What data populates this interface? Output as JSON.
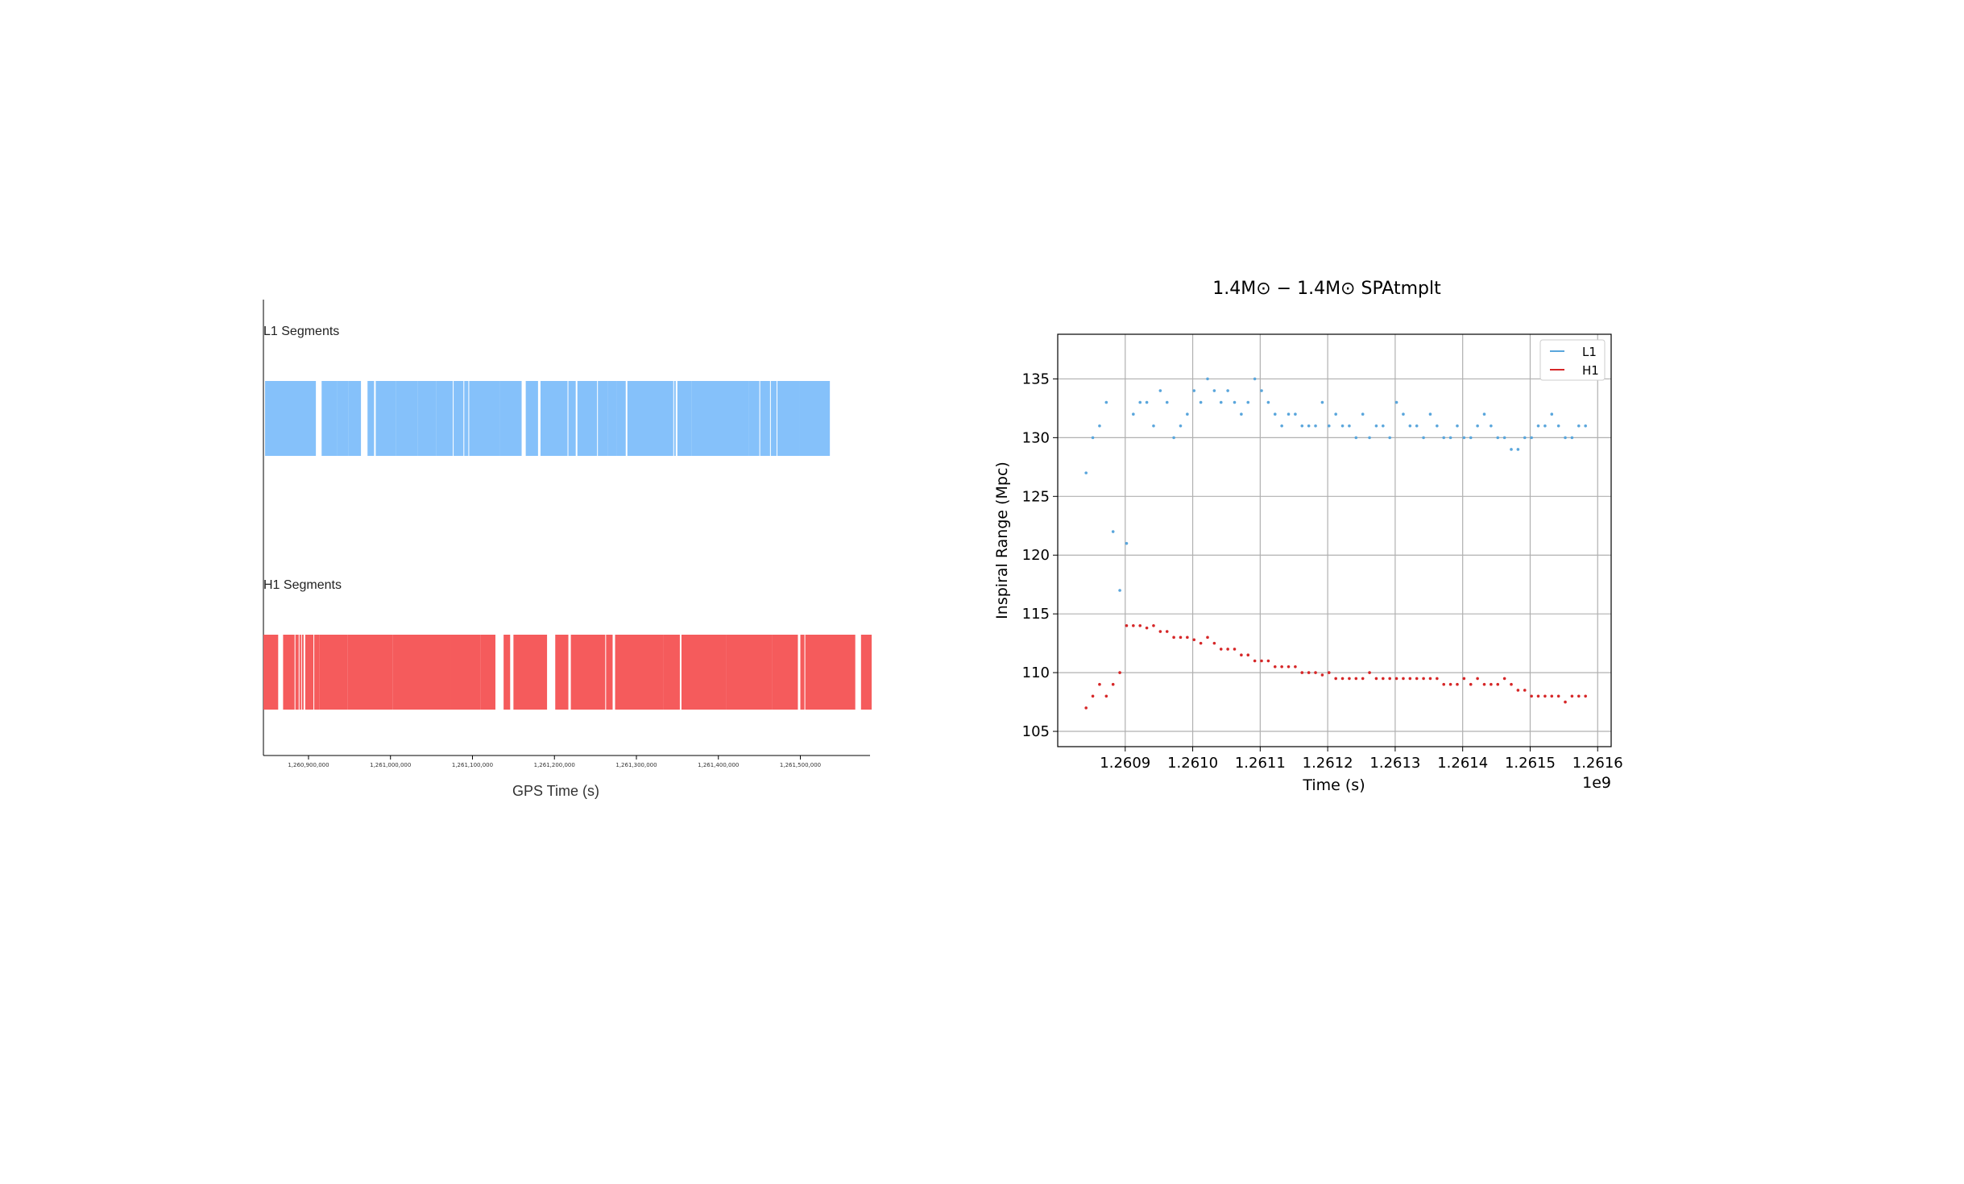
{
  "segments_chart": {
    "xlabel": "GPS Time (s)",
    "tick_labels": [
      "1,260,900,000",
      "1,261,000,000",
      "1,261,100,000",
      "1,261,200,000",
      "1,261,300,000",
      "1,261,400,000",
      "1,261,500,000"
    ]
  },
  "range_chart": {
    "title": "1.4M⊙ − 1.4M⊙ SPAtmplt",
    "xlabel": "Time (s)",
    "ylabel": "Inspiral Range (Mpc)",
    "x_offset_label": "1e9",
    "x_tick_labels": [
      "1.2609",
      "1.2610",
      "1.2611",
      "1.2612",
      "1.2613",
      "1.2614",
      "1.2615",
      "1.2616"
    ],
    "y_tick_labels": [
      "105",
      "110",
      "115",
      "120",
      "125",
      "130",
      "135"
    ]
  },
  "chart_data": [
    {
      "type": "bar",
      "xlabel": "GPS Time (s)",
      "xlim": [
        1260845000,
        1261585000
      ],
      "series": [
        {
          "name": "L1 Segments",
          "color": "#85c1fa",
          "segments": [
            [
              1260847000,
              1260909000
            ],
            [
              1260916000,
              1260935000
            ],
            [
              1260935000,
              1260949000
            ],
            [
              1260949000,
              1260964000
            ],
            [
              1260972000,
              1260980000
            ],
            [
              1260982000,
              1261007000
            ],
            [
              1261007000,
              1261033000
            ],
            [
              1261033000,
              1261056000
            ],
            [
              1261056000,
              1261076000
            ],
            [
              1261077000,
              1261089000
            ],
            [
              1261090000,
              1261095000
            ],
            [
              1261096000,
              1261133000
            ],
            [
              1261133000,
              1261160000
            ],
            [
              1261165000,
              1261180000
            ],
            [
              1261183000,
              1261216000
            ],
            [
              1261217000,
              1261226000
            ],
            [
              1261228000,
              1261252000
            ],
            [
              1261253000,
              1261265000
            ],
            [
              1261265000,
              1261276000
            ],
            [
              1261276000,
              1261287000
            ],
            [
              1261289000,
              1261345000
            ],
            [
              1261346000,
              1261348000
            ],
            [
              1261350000,
              1261367000
            ],
            [
              1261367000,
              1261437000
            ],
            [
              1261437000,
              1261450000
            ],
            [
              1261451000,
              1261463000
            ],
            [
              1261464000,
              1261471000
            ],
            [
              1261472000,
              1261499000
            ],
            [
              1261499000,
              1261536000
            ]
          ]
        },
        {
          "name": "H1 Segments",
          "color": "#f55b5c",
          "segments": [
            [
              1260845000,
              1260863000
            ],
            [
              1260869000,
              1260883000
            ],
            [
              1260884000,
              1260888000
            ],
            [
              1260889000,
              1260891000
            ],
            [
              1260892000,
              1260894000
            ],
            [
              1260896000,
              1260906000
            ],
            [
              1260907000,
              1260913000
            ],
            [
              1260913000,
              1260948000
            ],
            [
              1260948000,
              1261003000
            ],
            [
              1261003000,
              1261073000
            ],
            [
              1261073000,
              1261110000
            ],
            [
              1261110000,
              1261128000
            ],
            [
              1261138000,
              1261146000
            ],
            [
              1261150000,
              1261191000
            ],
            [
              1261201000,
              1261217000
            ],
            [
              1261220000,
              1261262000
            ],
            [
              1261263000,
              1261271000
            ],
            [
              1261274000,
              1261333000
            ],
            [
              1261333000,
              1261353000
            ],
            [
              1261355000,
              1261410000
            ],
            [
              1261410000,
              1261466000
            ],
            [
              1261466000,
              1261497000
            ],
            [
              1261500000,
              1261505000
            ],
            [
              1261506000,
              1261567000
            ],
            [
              1261574000,
              1261587000
            ]
          ]
        }
      ]
    },
    {
      "type": "scatter",
      "title": "1.4M⊙ − 1.4M⊙ SPAtmplt",
      "xlabel": "Time (s)",
      "ylabel": "Inspiral Range (Mpc)",
      "xlim": [
        1260800000,
        1261620000
      ],
      "ylim": [
        103.7,
        138.8
      ],
      "grid": true,
      "legend": "top-right",
      "series": [
        {
          "name": "L1",
          "color": "#5aa6dc",
          "x": [
            1260842000,
            1260852000,
            1260862000,
            1260872000,
            1260882000,
            1260892000,
            1260902000,
            1260912000,
            1260922000,
            1260932000,
            1260942000,
            1260952000,
            1260962000,
            1260972000,
            1260982000,
            1260992000,
            1261002000,
            1261012000,
            1261022000,
            1261032000,
            1261042000,
            1261052000,
            1261062000,
            1261072000,
            1261082000,
            1261092000,
            1261102000,
            1261112000,
            1261122000,
            1261132000,
            1261142000,
            1261152000,
            1261162000,
            1261172000,
            1261182000,
            1261192000,
            1261202000,
            1261212000,
            1261222000,
            1261232000,
            1261242000,
            1261252000,
            1261262000,
            1261272000,
            1261282000,
            1261292000,
            1261302000,
            1261312000,
            1261322000,
            1261332000,
            1261342000,
            1261352000,
            1261362000,
            1261372000,
            1261382000,
            1261392000,
            1261402000,
            1261412000,
            1261422000,
            1261432000,
            1261442000,
            1261452000,
            1261462000,
            1261472000,
            1261482000,
            1261492000,
            1261502000,
            1261512000,
            1261522000,
            1261532000,
            1261542000,
            1261552000,
            1261562000,
            1261572000,
            1261582000
          ],
          "y": [
            127,
            130,
            131,
            133,
            122,
            117,
            121,
            132,
            133,
            133,
            131,
            134,
            133,
            130,
            131,
            132,
            134,
            133,
            135,
            134,
            133,
            134,
            133,
            132,
            133,
            135,
            134,
            133,
            132,
            131,
            132,
            132,
            131,
            131,
            131,
            133,
            131,
            132,
            131,
            131,
            130,
            132,
            130,
            131,
            131,
            130,
            133,
            132,
            131,
            131,
            130,
            132,
            131,
            130,
            130,
            131,
            130,
            130,
            131,
            132,
            131,
            130,
            130,
            129,
            129,
            130,
            130,
            131,
            131,
            132,
            131,
            130,
            130,
            131,
            131
          ]
        },
        {
          "name": "H1",
          "color": "#d62728",
          "x": [
            1260842000,
            1260852000,
            1260862000,
            1260872000,
            1260882000,
            1260892000,
            1260902000,
            1260912000,
            1260922000,
            1260932000,
            1260942000,
            1260952000,
            1260962000,
            1260972000,
            1260982000,
            1260992000,
            1261002000,
            1261012000,
            1261022000,
            1261032000,
            1261042000,
            1261052000,
            1261062000,
            1261072000,
            1261082000,
            1261092000,
            1261102000,
            1261112000,
            1261122000,
            1261132000,
            1261142000,
            1261152000,
            1261162000,
            1261172000,
            1261182000,
            1261192000,
            1261202000,
            1261212000,
            1261222000,
            1261232000,
            1261242000,
            1261252000,
            1261262000,
            1261272000,
            1261282000,
            1261292000,
            1261302000,
            1261312000,
            1261322000,
            1261332000,
            1261342000,
            1261352000,
            1261362000,
            1261372000,
            1261382000,
            1261392000,
            1261402000,
            1261412000,
            1261422000,
            1261432000,
            1261442000,
            1261452000,
            1261462000,
            1261472000,
            1261482000,
            1261492000,
            1261502000,
            1261512000,
            1261522000,
            1261532000,
            1261542000,
            1261552000,
            1261562000,
            1261572000,
            1261582000
          ],
          "y": [
            107,
            108,
            109,
            108,
            109,
            110,
            114,
            114,
            114,
            113.8,
            114,
            113.5,
            113.5,
            113,
            113,
            113,
            112.8,
            112.5,
            113,
            112.5,
            112,
            112,
            112,
            111.5,
            111.5,
            111,
            111,
            111,
            110.5,
            110.5,
            110.5,
            110.5,
            110,
            110,
            110,
            109.8,
            110,
            109.5,
            109.5,
            109.5,
            109.5,
            109.5,
            110,
            109.5,
            109.5,
            109.5,
            109.5,
            109.5,
            109.5,
            109.5,
            109.5,
            109.5,
            109.5,
            109,
            109,
            109,
            109.5,
            109,
            109.5,
            109,
            109,
            109,
            109.5,
            109,
            108.5,
            108.5,
            108,
            108,
            108,
            108,
            108,
            107.5,
            108,
            108,
            108
          ]
        }
      ]
    }
  ]
}
